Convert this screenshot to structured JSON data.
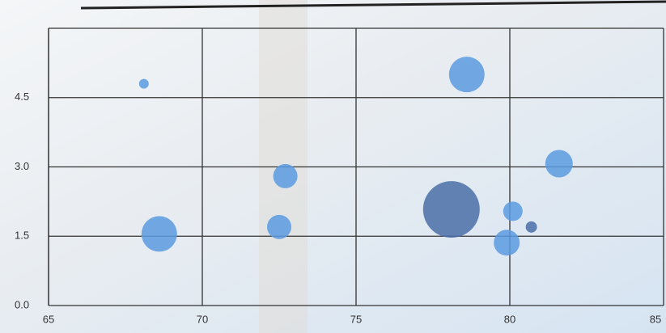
{
  "chart_data": {
    "type": "bubble",
    "x": [
      68.1,
      78.6,
      72.7,
      81.6,
      68.6,
      72.5,
      78.1,
      80.1,
      80.7,
      79.9
    ],
    "values": [
      4.8,
      5.0,
      2.8,
      3.07,
      1.55,
      1.7,
      2.08,
      2.04,
      1.7,
      1.36
    ],
    "sizes": [
      6,
      22,
      15,
      17,
      22,
      15,
      35,
      12,
      7,
      16
    ],
    "colors": [
      "#5b9be0",
      "#5b9be0",
      "#5b9be0",
      "#5b9be0",
      "#5b9be0",
      "#5b9be0",
      "#4a6ea8",
      "#5b9be0",
      "#4a6ea8",
      "#5b9be0"
    ],
    "xlim": [
      65,
      85
    ],
    "xticks": [
      65,
      70,
      75,
      80,
      85
    ],
    "ylim": [
      0,
      6
    ],
    "yticks": [
      {
        "value": 0,
        "label": "0.0"
      },
      1.5,
      {
        "value": 3,
        "label": "3.0"
      },
      4.5
    ],
    "grid": true
  }
}
